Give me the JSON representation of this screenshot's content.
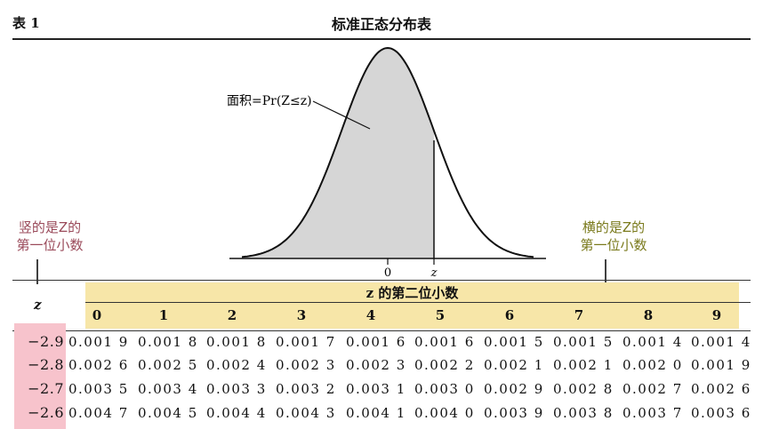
{
  "header": {
    "table_label": "表 1",
    "title": "标准正态分布表"
  },
  "figure": {
    "area_label": "面积=Pr(Z≤z)",
    "axis_zero": "0",
    "axis_z": "z",
    "shade_color": "#d6d6d6"
  },
  "annotations": {
    "left": [
      "竖的是Z的",
      "第一位小数"
    ],
    "right": [
      "横的是Z的",
      "第一位小数"
    ]
  },
  "table": {
    "z_header": "z",
    "band_title": "z 的第二位小数",
    "columns": [
      "0",
      "1",
      "2",
      "3",
      "4",
      "5",
      "6",
      "7",
      "8",
      "9"
    ],
    "rows": [
      {
        "z": "−2.9",
        "values": [
          "0.001 9",
          "0.001 8",
          "0.001 8",
          "0.001 7",
          "0.001 6",
          "0.001 6",
          "0.001 5",
          "0.001 5",
          "0.001 4",
          "0.001 4"
        ]
      },
      {
        "z": "−2.8",
        "values": [
          "0.002 6",
          "0.002 5",
          "0.002 4",
          "0.002 3",
          "0.002 3",
          "0.002 2",
          "0.002 1",
          "0.002 1",
          "0.002 0",
          "0.001 9"
        ]
      },
      {
        "z": "−2.7",
        "values": [
          "0.003 5",
          "0.003 4",
          "0.003 3",
          "0.003 2",
          "0.003 1",
          "0.003 0",
          "0.002 9",
          "0.002 8",
          "0.002 7",
          "0.002 6"
        ]
      },
      {
        "z": "−2.6",
        "values": [
          "0.004 7",
          "0.004 5",
          "0.004 4",
          "0.004 3",
          "0.004 1",
          "0.004 0",
          "0.003 9",
          "0.003 8",
          "0.003 7",
          "0.003 6"
        ]
      }
    ]
  },
  "colors": {
    "yellow_band": "#f7e6a8",
    "pink_band": "#f7c3cc",
    "annotation_left": "#9a4a5a",
    "annotation_right": "#7a7a1c"
  }
}
